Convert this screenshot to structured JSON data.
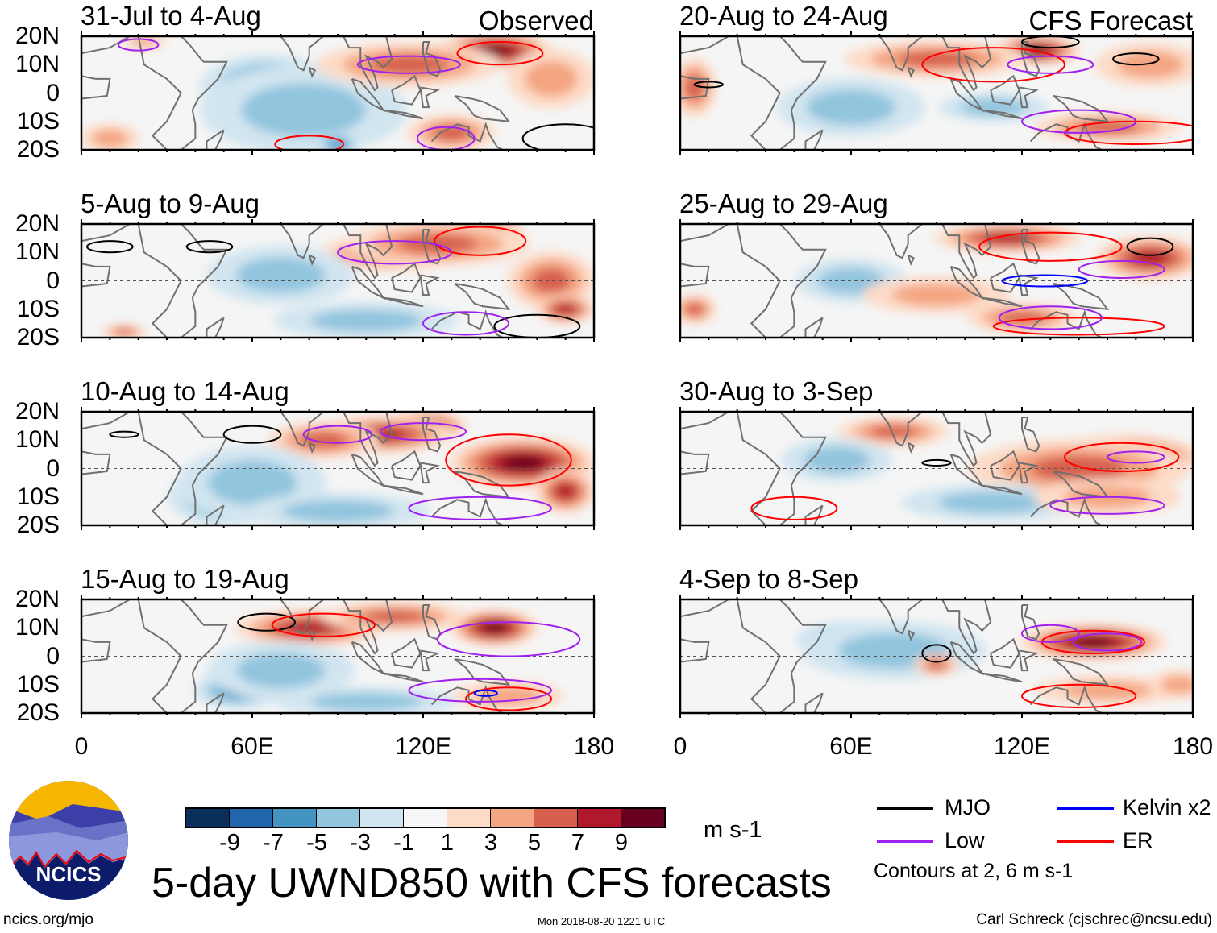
{
  "labels": {
    "observed": "Observed",
    "forecast": "CFS Forecast"
  },
  "lat_ticks": [
    "20N",
    "10N",
    "0",
    "10S",
    "20S"
  ],
  "lon_ticks": [
    "0",
    "60E",
    "120E",
    "180"
  ],
  "colorbar": {
    "colors": [
      "#0b2f5b",
      "#2166ac",
      "#4393c3",
      "#92c5de",
      "#d1e5f0",
      "#f7f7f7",
      "#fddbc7",
      "#f4a582",
      "#d6604d",
      "#b2182b",
      "#67001f"
    ],
    "tick_labels": [
      "-9",
      "-7",
      "-5",
      "-3",
      "-1",
      "1",
      "3",
      "5",
      "7",
      "9"
    ],
    "units": "m s-1"
  },
  "legend": {
    "items": [
      {
        "label": "MJO",
        "color": "#000000"
      },
      {
        "label": "Kelvin x2",
        "color": "#0000ff"
      },
      {
        "label": "Low",
        "color": "#a020f0"
      },
      {
        "label": "ER",
        "color": "#ff0000"
      }
    ],
    "note": "Contours at 2, 6 m s-1"
  },
  "title": "5-day UWND850 with CFS forecasts",
  "logo_text": "NCICS",
  "footer": {
    "url": "ncics.org/mjo",
    "timestamp": "Mon 2018-08-20 1221 UTC",
    "credit": "Carl Schreck (cjschrec@ncsu.edu)"
  },
  "chart_data": [
    {
      "title": "31-Jul to 4-Aug",
      "source": "Observed",
      "blobs": [
        [
          65,
          2,
          -5,
          18,
          9
        ],
        [
          78,
          -6,
          -3,
          28,
          12
        ],
        [
          90,
          -18,
          -5,
          6,
          3
        ],
        [
          145,
          15,
          9,
          16,
          5
        ],
        [
          115,
          10,
          5,
          25,
          6
        ],
        [
          130,
          -14,
          5,
          12,
          5
        ],
        [
          10,
          -16,
          3,
          8,
          4
        ],
        [
          165,
          5,
          3,
          12,
          8
        ],
        [
          22,
          18,
          3,
          6,
          2
        ]
      ],
      "contours": [
        [
          "Low",
          20,
          17,
          7,
          2
        ],
        [
          "ER",
          147,
          14,
          15,
          4
        ],
        [
          "Low",
          115,
          10,
          18,
          3
        ],
        [
          "MJO",
          170,
          -16,
          15,
          5
        ],
        [
          "Low",
          128,
          -16,
          10,
          4
        ],
        [
          "ER",
          80,
          -18,
          12,
          3
        ]
      ]
    },
    {
      "title": "5-Aug to 9-Aug",
      "source": "Observed",
      "blobs": [
        [
          140,
          17,
          9,
          12,
          4
        ],
        [
          110,
          10,
          7,
          20,
          5
        ],
        [
          125,
          13,
          5,
          25,
          6
        ],
        [
          165,
          0,
          5,
          12,
          8
        ],
        [
          170,
          -10,
          7,
          8,
          4
        ],
        [
          70,
          2,
          -3,
          20,
          8
        ],
        [
          100,
          -14,
          -3,
          25,
          5
        ],
        [
          15,
          -18,
          5,
          6,
          2
        ]
      ],
      "contours": [
        [
          "ER",
          140,
          14,
          16,
          5
        ],
        [
          "Low",
          110,
          10,
          20,
          4
        ],
        [
          "MJO",
          10,
          12,
          8,
          2
        ],
        [
          "MJO",
          45,
          12,
          8,
          2
        ],
        [
          "MJO",
          160,
          -16,
          15,
          4
        ],
        [
          "Low",
          135,
          -15,
          15,
          4
        ]
      ]
    },
    {
      "title": "10-Aug to 14-Aug",
      "source": "Observed",
      "blobs": [
        [
          120,
          15,
          9,
          12,
          4
        ],
        [
          155,
          2,
          9,
          20,
          7
        ],
        [
          170,
          -8,
          7,
          8,
          6
        ],
        [
          105,
          12,
          7,
          20,
          5
        ],
        [
          85,
          10,
          5,
          15,
          5
        ],
        [
          50,
          -10,
          -5,
          15,
          8
        ],
        [
          60,
          -5,
          -3,
          20,
          10
        ],
        [
          90,
          -15,
          -3,
          25,
          5
        ]
      ],
      "contours": [
        [
          "ER",
          150,
          3,
          22,
          9
        ],
        [
          "Low",
          120,
          13,
          15,
          3
        ],
        [
          "MJO",
          60,
          12,
          10,
          3
        ],
        [
          "MJO",
          15,
          12,
          5,
          1
        ],
        [
          "Low",
          140,
          -14,
          25,
          4
        ],
        [
          "Low",
          90,
          12,
          12,
          3
        ]
      ]
    },
    {
      "title": "15-Aug to 19-Aug",
      "source": "Observed",
      "blobs": [
        [
          80,
          10,
          7,
          20,
          5
        ],
        [
          145,
          10,
          9,
          12,
          5
        ],
        [
          110,
          14,
          5,
          20,
          4
        ],
        [
          55,
          -12,
          -5,
          12,
          5
        ],
        [
          70,
          -5,
          -3,
          20,
          8
        ],
        [
          100,
          -16,
          -3,
          25,
          4
        ],
        [
          150,
          -14,
          3,
          15,
          4
        ]
      ],
      "contours": [
        [
          "MJO",
          65,
          12,
          10,
          3
        ],
        [
          "ER",
          85,
          11,
          18,
          4
        ],
        [
          "Low",
          150,
          6,
          25,
          6
        ],
        [
          "ER",
          150,
          -15,
          15,
          4
        ],
        [
          "Low",
          140,
          -12,
          25,
          4
        ],
        [
          "Kelvin x2",
          142,
          -13,
          4,
          1
        ]
      ]
    },
    {
      "title": "20-Aug to 24-Aug",
      "source": "CFS Forecast",
      "blobs": [
        [
          125,
          15,
          9,
          12,
          4
        ],
        [
          90,
          12,
          5,
          25,
          5
        ],
        [
          165,
          10,
          3,
          15,
          6
        ],
        [
          5,
          2,
          5,
          6,
          8
        ],
        [
          150,
          -12,
          5,
          20,
          4
        ],
        [
          60,
          -5,
          -3,
          20,
          8
        ],
        [
          110,
          -5,
          -3,
          15,
          4
        ]
      ],
      "contours": [
        [
          "ER",
          110,
          10,
          25,
          6
        ],
        [
          "Low",
          130,
          10,
          15,
          3
        ],
        [
          "MJO",
          130,
          18,
          10,
          2
        ],
        [
          "MJO",
          160,
          12,
          8,
          2
        ],
        [
          "ER",
          160,
          -14,
          25,
          4
        ],
        [
          "Low",
          140,
          -10,
          20,
          4
        ],
        [
          "MJO",
          10,
          3,
          5,
          1
        ]
      ]
    },
    {
      "title": "25-Aug to 29-Aug",
      "source": "CFS Forecast",
      "blobs": [
        [
          115,
          15,
          7,
          20,
          4
        ],
        [
          165,
          8,
          7,
          15,
          6
        ],
        [
          60,
          0,
          -3,
          15,
          6
        ],
        [
          90,
          -5,
          3,
          20,
          5
        ],
        [
          120,
          -13,
          5,
          15,
          4
        ],
        [
          5,
          -10,
          5,
          6,
          4
        ]
      ],
      "contours": [
        [
          "ER",
          130,
          12,
          25,
          5
        ],
        [
          "Low",
          155,
          4,
          15,
          3
        ],
        [
          "Kelvin x2",
          128,
          0,
          15,
          2
        ],
        [
          "MJO",
          165,
          12,
          8,
          3
        ],
        [
          "ER",
          140,
          -16,
          30,
          3
        ],
        [
          "Low",
          130,
          -13,
          18,
          4
        ]
      ]
    },
    {
      "title": "30-Aug to 3-Sep",
      "source": "CFS Forecast",
      "blobs": [
        [
          155,
          4,
          9,
          22,
          6
        ],
        [
          140,
          0,
          5,
          30,
          8
        ],
        [
          75,
          13,
          5,
          15,
          4
        ],
        [
          55,
          3,
          -3,
          15,
          6
        ],
        [
          110,
          -12,
          -3,
          25,
          5
        ],
        [
          150,
          -10,
          3,
          20,
          5
        ]
      ],
      "contours": [
        [
          "ER",
          155,
          4,
          20,
          5
        ],
        [
          "Low",
          160,
          4,
          10,
          2
        ],
        [
          "MJO",
          90,
          2,
          5,
          1
        ],
        [
          "ER",
          40,
          -14,
          15,
          4
        ],
        [
          "Low",
          150,
          -13,
          20,
          3
        ]
      ]
    },
    {
      "title": "4-Sep to 8-Sep",
      "source": "CFS Forecast",
      "blobs": [
        [
          145,
          5,
          9,
          20,
          5
        ],
        [
          60,
          6,
          -5,
          15,
          5
        ],
        [
          75,
          2,
          -3,
          25,
          8
        ],
        [
          150,
          -12,
          3,
          20,
          4
        ],
        [
          90,
          -3,
          5,
          6,
          3
        ],
        [
          175,
          -10,
          3,
          8,
          4
        ]
      ],
      "contours": [
        [
          "ER",
          145,
          5,
          18,
          4
        ],
        [
          "Low",
          150,
          5,
          12,
          3
        ],
        [
          "MJO",
          90,
          1,
          5,
          3
        ],
        [
          "ER",
          140,
          -14,
          20,
          4
        ],
        [
          "Low",
          130,
          8,
          10,
          3
        ]
      ]
    }
  ]
}
